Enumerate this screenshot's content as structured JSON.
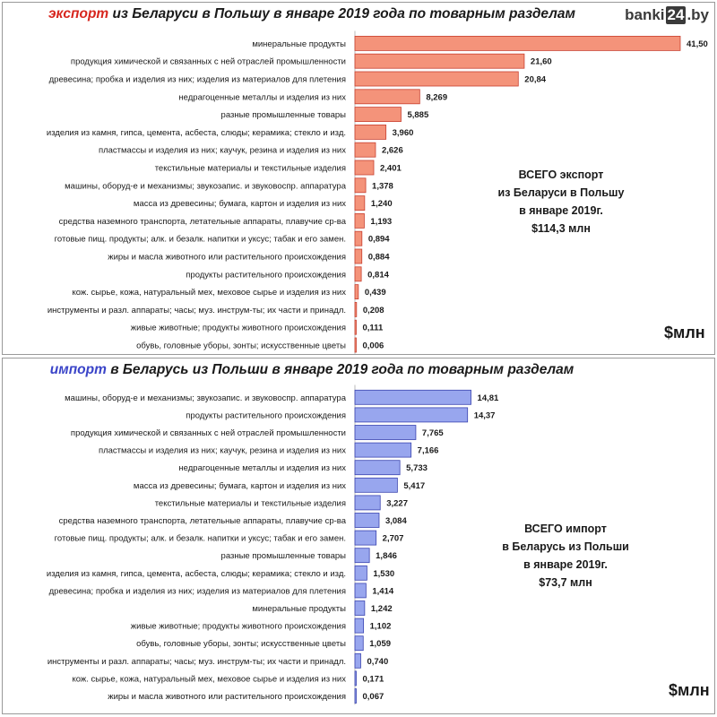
{
  "brand": {
    "logo_pre": "banki",
    "logo_box": "24",
    "logo_post": ".by"
  },
  "export_panel": {
    "title_kw": "экспорт",
    "title_rest": " из Беларуси в Польшу в январе 2019 года по товарным разделам",
    "total_lines": [
      "ВСЕГО экспорт",
      "из Беларуси в Польшу",
      "в январе 2019г.",
      "$114,3 млн"
    ],
    "unit": "$млн",
    "bar_color": "#f4937a",
    "bar_stroke": "#c84030"
  },
  "import_panel": {
    "title_kw": "импорт",
    "title_rest": " в Беларусь из Польши в январе 2019 года по товарным разделам",
    "total_lines": [
      "ВСЕГО импорт",
      "в Беларусь из Польши",
      "в январе 2019г.",
      "$73,7 млн"
    ],
    "unit": "$млн",
    "bar_color": "#98a6ee",
    "bar_stroke": "#3a44b0"
  },
  "chart_data": [
    {
      "type": "bar",
      "orientation": "horizontal",
      "title": "экспорт из Беларуси в Польшу в январе 2019 года по товарным разделам",
      "unit": "$млн",
      "categories": [
        "минеральные продукты",
        "продукция химической и связанных с ней отраслей промышленности",
        "древесина;  пробка и изделия из них; изделия из материалов для плетения",
        "недрагоценные  металлы и изделия из них",
        "разные промышленные товары",
        "изделия из камня, гипса, цемента, асбеста,  слюды; керамика;  стекло и изд.",
        "пластмассы и изделия из них; каучук, резина и изделия из них",
        "текстильные материалы и текстильные изделия",
        "машины, оборуд-е и механизмы;  звукозапис. и звуковоспр. аппаратура",
        "масса из древесины; бумага, картон и изделия из них",
        "средства  наземного транспорта, летательные аппараты, плавучие ср-ва",
        "готовые пищ. продукты; алк. и безалк. напитки и уксус;  табак и его замен.",
        "жиры и масла животного или растительного происхождения",
        "продукты растительного происхождения",
        "кож. сырье, кожа, натуральный мех, меховое сырье и изделия из них",
        "инструменты и разл. аппараты; часы;  муз. инструм-ты; их части и принадл.",
        "живые животные; продукты животного происхождения",
        "обувь, головные уборы, зонты; искусственные  цветы"
      ],
      "values": [
        41.5,
        21.6,
        20.84,
        8.269,
        5.885,
        3.96,
        2.626,
        2.401,
        1.378,
        1.24,
        1.193,
        0.894,
        0.884,
        0.814,
        0.439,
        0.208,
        0.111,
        0.006
      ],
      "value_labels": [
        "41,50",
        "21,60",
        "20,84",
        "8,269",
        "5,885",
        "3,960",
        "2,626",
        "2,401",
        "1,378",
        "1,240",
        "1,193",
        "0,894",
        "0,884",
        "0,814",
        "0,439",
        "0,208",
        "0,111",
        "0,006"
      ],
      "xlim": [
        0,
        41.5
      ],
      "grid": false
    },
    {
      "type": "bar",
      "orientation": "horizontal",
      "title": "импорт в Беларусь из Польши в январе 2019 года по товарным разделам",
      "unit": "$млн",
      "categories": [
        "машины, оборуд-е и механизмы;  звукозапис. и звуковоспр. аппаратура",
        "продукты растительного происхождения",
        "продукция химической и связанных с ней отраслей промышленности",
        "пластмассы и изделия из них; каучук, резина и изделия из них",
        "недрагоценные  металлы и изделия из них",
        "масса из древесины; бумага, картон и изделия из них",
        "текстильные материалы и текстильные изделия",
        "средства  наземного транспорта, летательные аппараты, плавучие ср-ва",
        "готовые пищ. продукты; алк. и безалк. напитки и уксус;  табак и его замен.",
        "разные промышленные товары",
        "изделия из камня, гипса, цемента, асбеста,  слюды; керамика;  стекло и изд.",
        "древесина;  пробка и изделия из них; изделия из материалов для плетения",
        "минеральные продукты",
        "живые животные; продукты животного происхождения",
        "обувь, головные уборы, зонты; искусственные  цветы",
        "инструменты и разл. аппараты; часы;  муз. инструм-ты; их части и принадл.",
        "кож. сырье, кожа, натуральный мех, меховое сырье и изделия из них",
        "жиры и масла животного или растительного происхождения"
      ],
      "values": [
        14.81,
        14.37,
        7.765,
        7.166,
        5.733,
        5.417,
        3.227,
        3.084,
        2.707,
        1.846,
        1.53,
        1.414,
        1.242,
        1.102,
        1.059,
        0.74,
        0.171,
        0.067
      ],
      "value_labels": [
        "14,81",
        "14,37",
        "7,765",
        "7,166",
        "5,733",
        "5,417",
        "3,227",
        "3,084",
        "2,707",
        "1,846",
        "1,530",
        "1,414",
        "1,242",
        "1,102",
        "1,059",
        "0,740",
        "0,171",
        "0,067"
      ],
      "xlim": [
        0,
        41.5
      ],
      "grid": false
    }
  ]
}
